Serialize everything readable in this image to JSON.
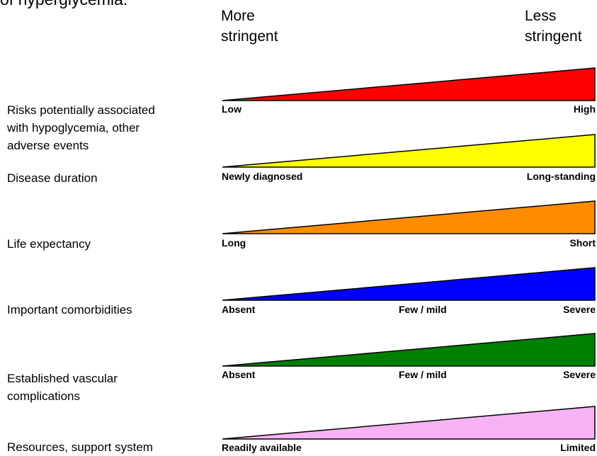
{
  "header": {
    "title": "of hyperglycemia:",
    "more_stringent": "More\nstringent",
    "less_stringent": "Less\nstringent"
  },
  "factors": [
    {
      "label": "Risks potentially associated\nwith hypoglycemia, other\nadverse events",
      "color": "#ff0000",
      "scale": {
        "left": "Low",
        "middle": "",
        "right": "High"
      }
    },
    {
      "label": "Disease duration",
      "color": "#ffff00",
      "scale": {
        "left": "Newly diagnosed",
        "middle": "",
        "right": "Long-standing"
      }
    },
    {
      "label": "Life expectancy",
      "color": "#ff8c00",
      "scale": {
        "left": "Long",
        "middle": "",
        "right": "Short"
      }
    },
    {
      "label": "Important comorbidities",
      "color": "#0000ff",
      "scale": {
        "left": "Absent",
        "middle": "Few / mild",
        "right": "Severe"
      }
    },
    {
      "label": "Established vascular\ncomplications",
      "color": "#008000",
      "scale": {
        "left": "Absent",
        "middle": "Few / mild",
        "right": "Severe"
      }
    },
    {
      "label": "Resources, support system",
      "color": "#f5b3f5",
      "scale": {
        "left": "Readily available",
        "middle": "",
        "right": "Limited"
      }
    }
  ]
}
